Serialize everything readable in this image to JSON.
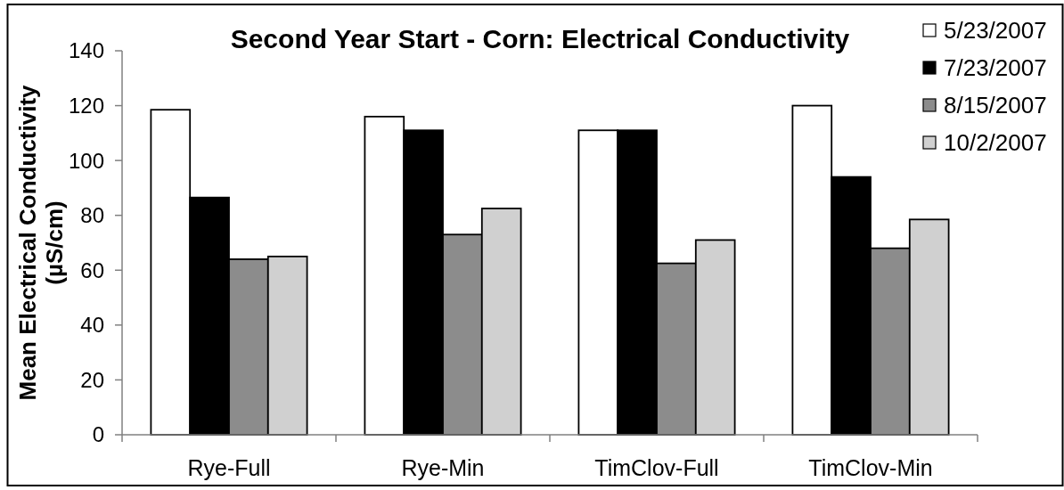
{
  "chart_data": {
    "type": "bar",
    "title": "Second Year Start - Corn: Electrical Conductivity",
    "ylabel": "Mean Electrical Conductivity\n(µS/cm)",
    "categories": [
      "Rye-Full",
      "Rye-Min",
      "TimClov-Full",
      "TimClov-Min"
    ],
    "series": [
      {
        "name": "5/23/2007",
        "color": "#ffffff",
        "values": [
          118.5,
          116,
          111,
          120
        ]
      },
      {
        "name": "7/23/2007",
        "color": "#000000",
        "values": [
          86.5,
          111,
          111,
          94
        ]
      },
      {
        "name": "8/15/2007",
        "color": "#8c8c8c",
        "values": [
          64,
          73,
          62.5,
          68
        ]
      },
      {
        "name": "10/2/2007",
        "color": "#d0d0d0",
        "values": [
          65,
          82.5,
          71,
          78.5
        ]
      }
    ],
    "ylim": [
      0,
      140
    ],
    "yticks": [
      0,
      20,
      40,
      60,
      80,
      100,
      120,
      140
    ],
    "legend": "top right"
  }
}
